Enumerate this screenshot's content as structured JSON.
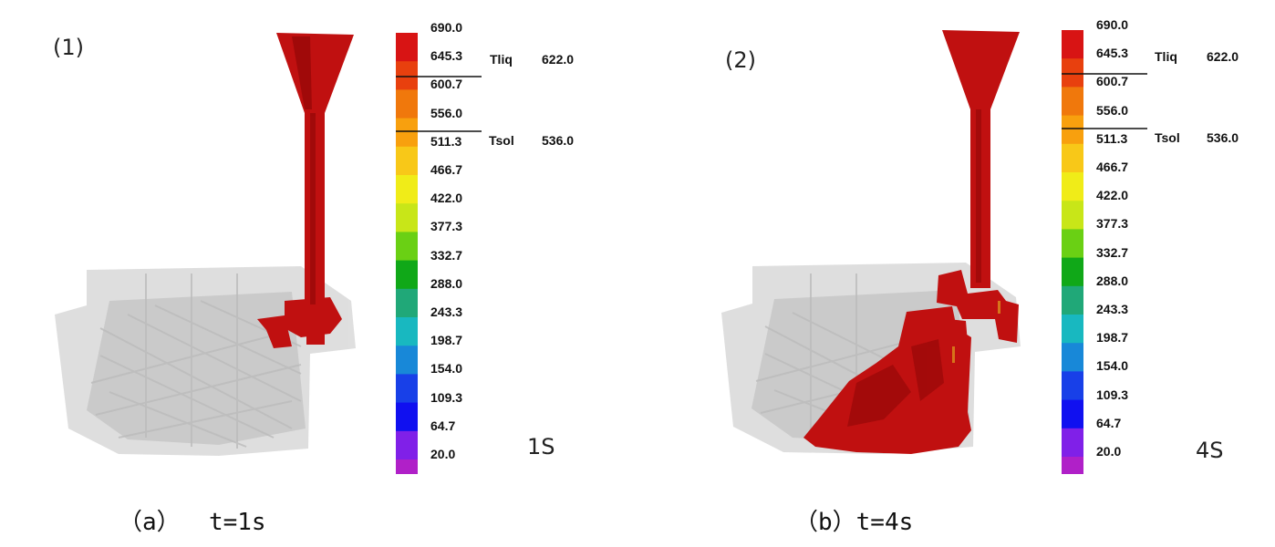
{
  "scale": {
    "ticks": [
      "690.0",
      "645.3",
      "600.7",
      "556.0",
      "511.3",
      "466.7",
      "422.0",
      "377.3",
      "332.7",
      "288.0",
      "243.3",
      "198.7",
      "154.0",
      "109.3",
      "64.7",
      "20.0"
    ],
    "colors": [
      "#d81414",
      "#e8400e",
      "#f0780c",
      "#f8a00e",
      "#f8c818",
      "#f0ec18",
      "#c8e618",
      "#6ad014",
      "#10a818",
      "#20a878",
      "#18b8c0",
      "#1888d8",
      "#1840e8",
      "#1010f0",
      "#8020e8",
      "#b020c8"
    ],
    "tliq_label": "Tliq",
    "tliq_value": "622.0",
    "tsol_label": "Tsol",
    "tsol_value": "536.0"
  },
  "panels": [
    {
      "index": "(1)",
      "time_stamp": "1S",
      "caption": "（a）  t=1s"
    },
    {
      "index": "(2)",
      "time_stamp": "4S",
      "caption": "（b）t=4s"
    }
  ]
}
